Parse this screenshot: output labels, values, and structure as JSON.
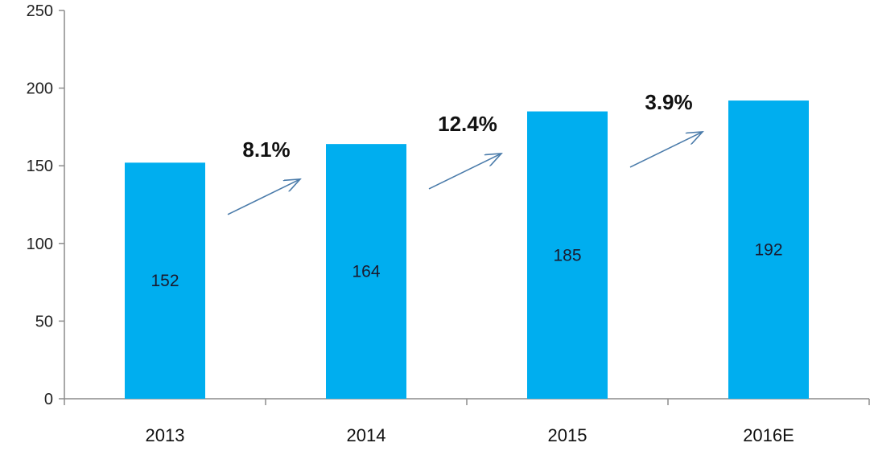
{
  "chart_data": {
    "type": "bar",
    "categories": [
      "2013",
      "2014",
      "2015",
      "2016E"
    ],
    "values": [
      152,
      164,
      185,
      192
    ],
    "data_labels": [
      "152",
      "164",
      "185",
      "192"
    ],
    "ylim": [
      0,
      250
    ],
    "yticks": [
      0,
      50,
      100,
      150,
      200,
      250
    ],
    "ytick_labels": [
      "0",
      "50",
      "100",
      "150",
      "200",
      "250"
    ],
    "grid": false,
    "legend": "none",
    "title": "",
    "xlabel": "",
    "ylabel": "",
    "bar_color": "#00AEEF",
    "arrow_color": "#4A7BAA",
    "growth_annotations": [
      {
        "text": "8.1%",
        "between": [
          "2013",
          "2014"
        ]
      },
      {
        "text": "12.4%",
        "between": [
          "2014",
          "2015"
        ]
      },
      {
        "text": "3.9%",
        "between": [
          "2015",
          "2016E"
        ]
      }
    ]
  }
}
